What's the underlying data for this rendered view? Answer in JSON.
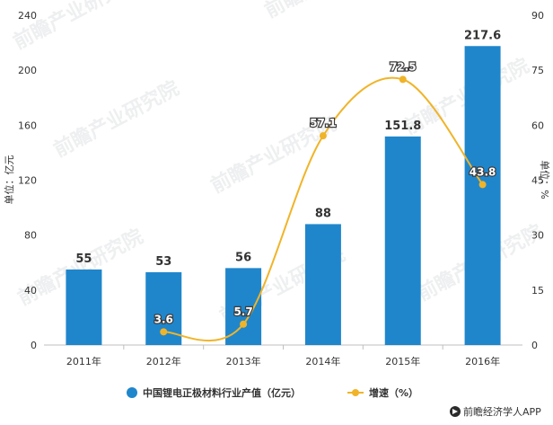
{
  "chart_data": {
    "type": "bar+line",
    "categories": [
      "2011年",
      "2012年",
      "2013年",
      "2014年",
      "2015年",
      "2016年"
    ],
    "series": [
      {
        "name": "中国锂电正极材料行业产值（亿元）",
        "type": "bar",
        "axis": "left",
        "color": "#1f86cc",
        "values": [
          55,
          53,
          56,
          88,
          151.8,
          217.6
        ],
        "labels": [
          "55",
          "53",
          "56",
          "88",
          "151.8",
          "217.6"
        ]
      },
      {
        "name": "增速（%）",
        "type": "line",
        "axis": "right",
        "color": "#f0b429",
        "values": [
          null,
          3.6,
          5.7,
          57.1,
          72.5,
          43.8
        ],
        "labels": [
          "",
          "3.6",
          "5.7",
          "57.1",
          "72.5",
          "43.8"
        ]
      }
    ],
    "left_axis": {
      "label": "单位：亿元",
      "min": 0,
      "max": 240,
      "ticks": [
        0,
        40,
        80,
        120,
        160,
        200,
        240
      ]
    },
    "right_axis": {
      "label": "单位：%",
      "min": 0,
      "max": 90,
      "ticks": [
        0,
        15,
        30,
        45,
        60,
        75,
        90
      ]
    },
    "grid": false,
    "legend_position": "bottom"
  },
  "source": {
    "icon": "logo-icon",
    "text": "前瞻经济学人APP"
  },
  "watermark": {
    "text": "前瞻产业研究院"
  }
}
